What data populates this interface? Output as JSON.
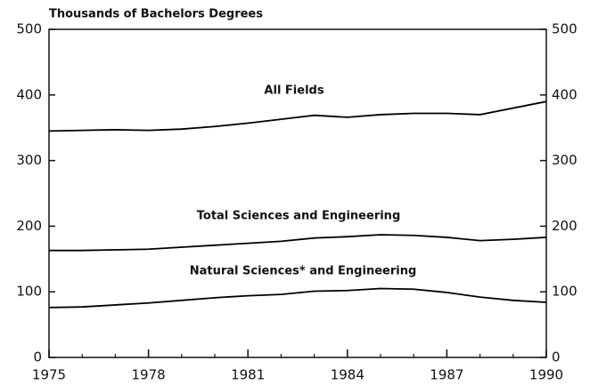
{
  "chart_data": {
    "type": "line",
    "title": "Thousands of Bachelors Degrees",
    "x": [
      1975,
      1976,
      1977,
      1978,
      1979,
      1980,
      1981,
      1982,
      1983,
      1984,
      1985,
      1986,
      1987,
      1988,
      1989,
      1990
    ],
    "series": [
      {
        "name": "All Fields",
        "color": "#000000",
        "values": [
          345,
          346,
          347,
          346,
          348,
          352,
          357,
          363,
          369,
          366,
          370,
          372,
          372,
          370,
          380,
          390
        ]
      },
      {
        "name": "Total Sciences and Engineering",
        "color": "#000000",
        "values": [
          163,
          163,
          164,
          165,
          168,
          171,
          174,
          177,
          182,
          184,
          187,
          186,
          183,
          178,
          180,
          183
        ]
      },
      {
        "name": "Natural Sciences* and Engineering",
        "color": "#000000",
        "values": [
          76,
          77,
          80,
          83,
          87,
          91,
          94,
          96,
          101,
          102,
          105,
          104,
          99,
          92,
          87,
          84
        ]
      }
    ],
    "xlim": [
      1975,
      1990
    ],
    "xticks": [
      1975,
      1978,
      1981,
      1984,
      1987,
      1990
    ],
    "ylim": [
      0,
      500
    ],
    "yticks": [
      0,
      100,
      200,
      300,
      400,
      500
    ],
    "grid": false
  }
}
